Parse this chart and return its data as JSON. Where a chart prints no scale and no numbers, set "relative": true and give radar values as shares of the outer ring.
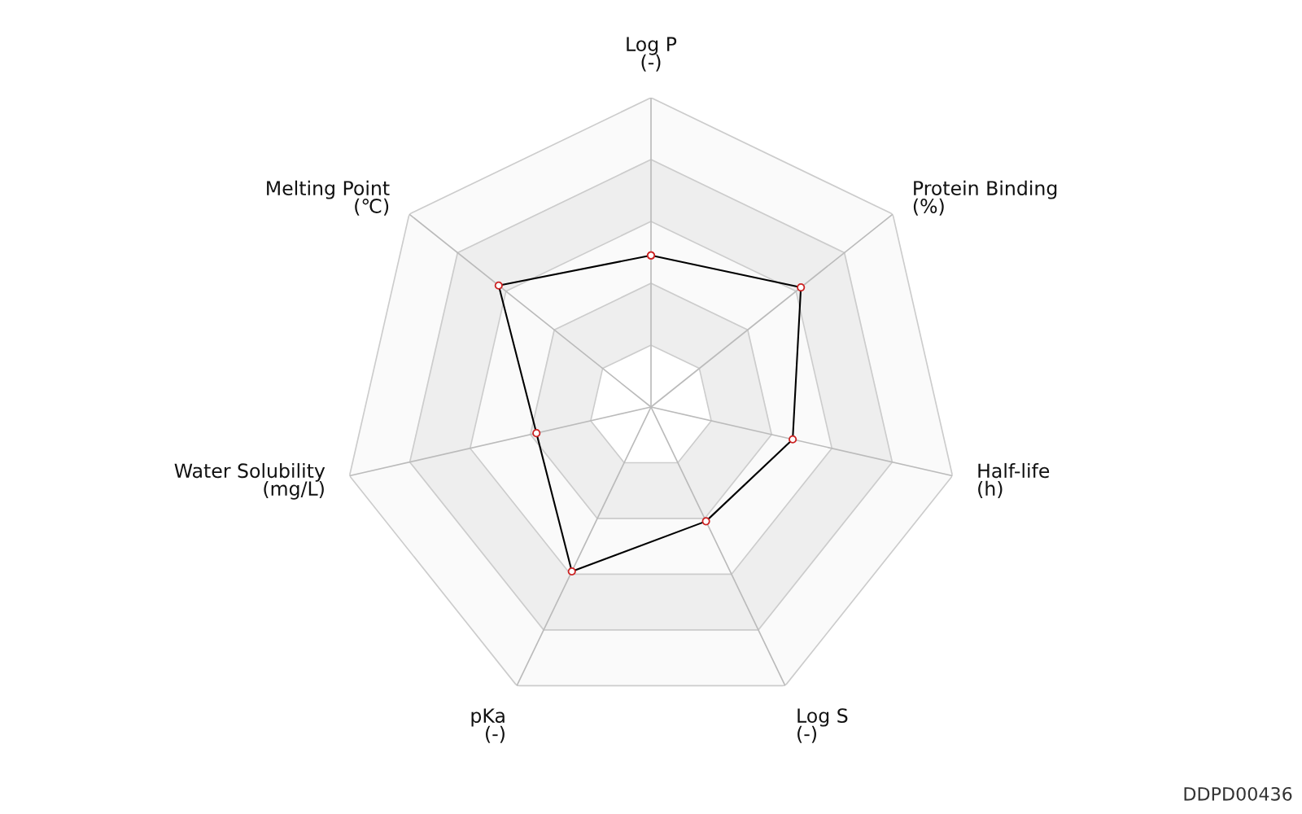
{
  "chart_data": {
    "type": "radar",
    "relative": true,
    "marker": "circle",
    "line_style": "solid",
    "categories": [
      "Log P\n(-)",
      "Protein Binding\n(%)",
      "Half-life\n(h)",
      "Log S\n(-)",
      "pKa\n(-)",
      "Water Solubility\n(mg/L)",
      "Melting Point\n(℃)"
    ],
    "series": [
      {
        "color": "#000000",
        "values": [
          0.49,
          0.62,
          0.47,
          0.41,
          0.59,
          0.38,
          0.63
        ]
      }
    ],
    "annotations": [
      "DDPD00436"
    ]
  }
}
